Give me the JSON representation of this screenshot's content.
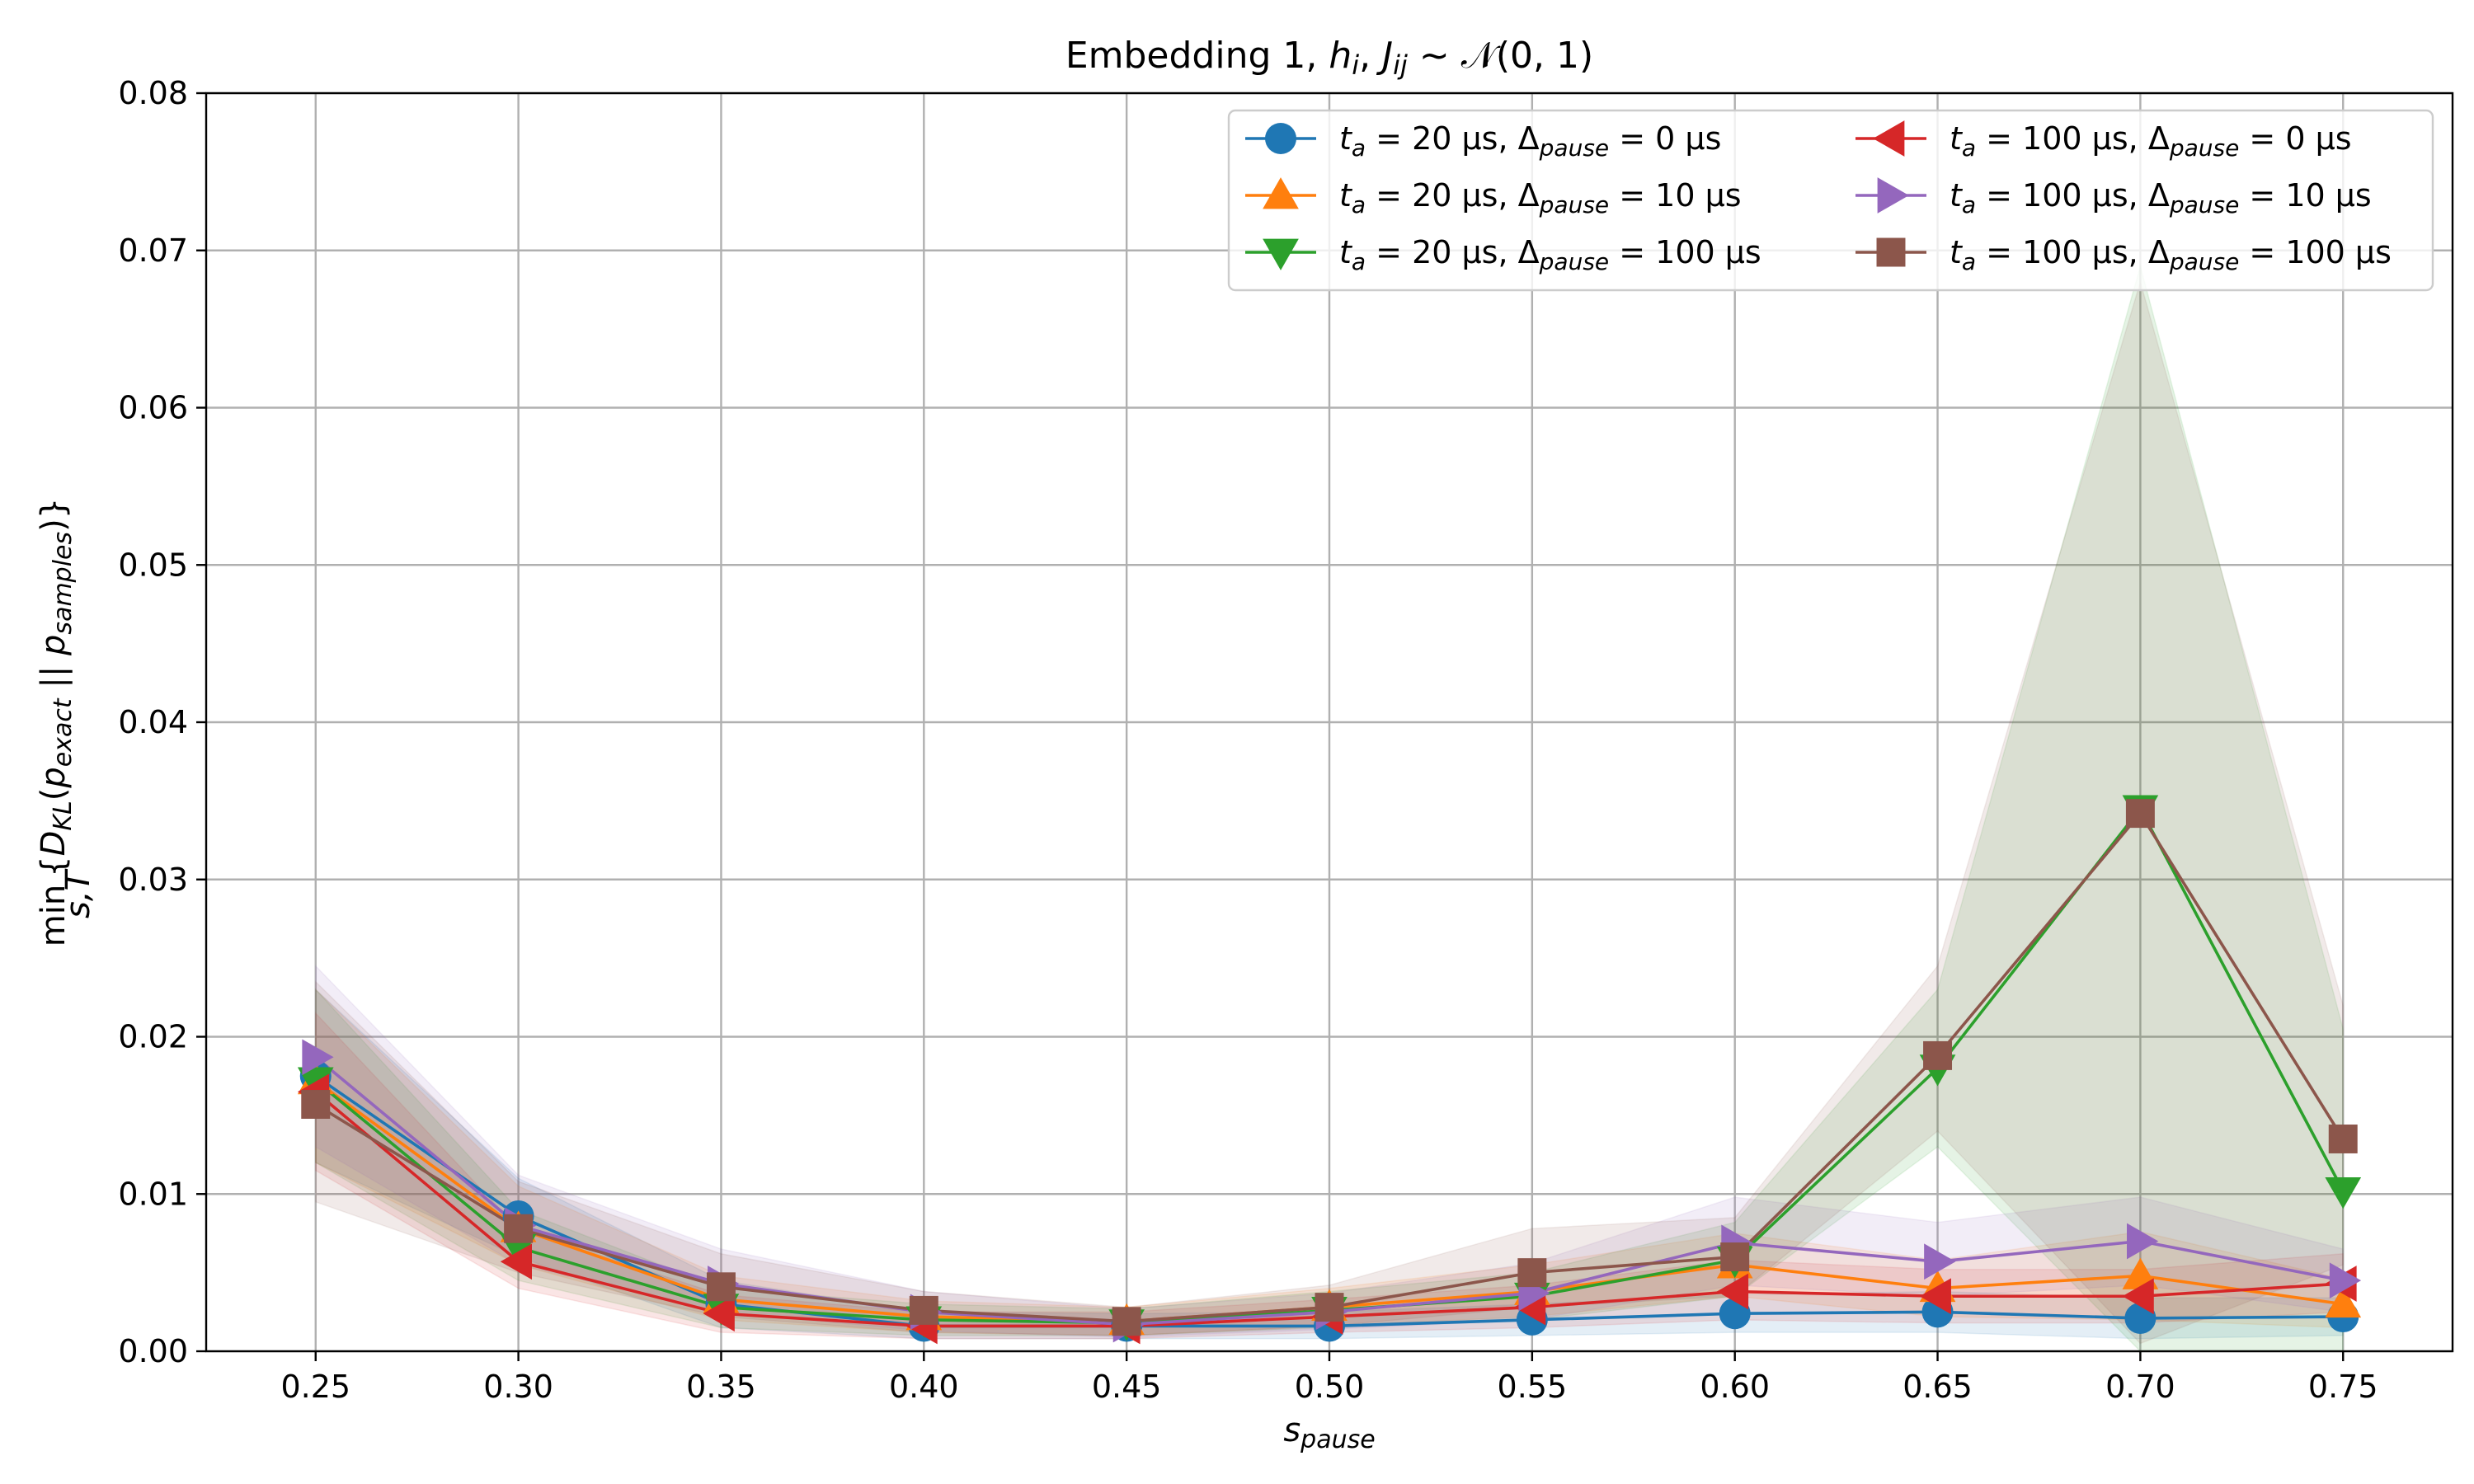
{
  "chart_data": {
    "type": "line",
    "title": "Embedding 1, h_i, J_ij ~ 𝒩(0, 1)",
    "xlabel": "s_pause",
    "ylabel": "min_{s,T}{D_KL(p_exact || p_samples)}",
    "x": [
      0.25,
      0.3,
      0.35,
      0.4,
      0.45,
      0.5,
      0.55,
      0.6,
      0.65,
      0.7,
      0.75
    ],
    "xticks": [
      "0.25",
      "0.30",
      "0.35",
      "0.40",
      "0.45",
      "0.50",
      "0.55",
      "0.60",
      "0.65",
      "0.70",
      "0.75"
    ],
    "yticks": [
      "0.00",
      "0.01",
      "0.02",
      "0.03",
      "0.04",
      "0.05",
      "0.06",
      "0.07",
      "0.08"
    ],
    "xlim": [
      0.223,
      0.777
    ],
    "ylim": [
      0.0,
      0.08
    ],
    "grid": true,
    "legend_position": "upper right",
    "series": [
      {
        "name": "t_a = 20 µs, Δ_pause = 0 µs",
        "color": "#1f77b4",
        "marker": "circle",
        "values": [
          0.0175,
          0.0086,
          0.003,
          0.0016,
          0.0016,
          0.0016,
          0.002,
          0.0024,
          0.0025,
          0.0021,
          0.0022
        ],
        "lower": [
          0.012,
          0.006,
          0.0015,
          0.0008,
          0.0008,
          0.0008,
          0.001,
          0.0012,
          0.0012,
          0.0008,
          0.001
        ],
        "upper": [
          0.023,
          0.011,
          0.0045,
          0.0025,
          0.0024,
          0.0025,
          0.003,
          0.0036,
          0.0038,
          0.0034,
          0.0034
        ]
      },
      {
        "name": "t_a = 20 µs, Δ_pause = 10 µs",
        "color": "#ff7f0e",
        "marker": "triangle-up",
        "values": [
          0.0172,
          0.0078,
          0.0033,
          0.0022,
          0.0019,
          0.0028,
          0.0038,
          0.0055,
          0.004,
          0.0048,
          0.003
        ],
        "lower": [
          0.012,
          0.0055,
          0.002,
          0.0012,
          0.001,
          0.0016,
          0.0022,
          0.0035,
          0.0022,
          0.002,
          0.0015
        ],
        "upper": [
          0.023,
          0.0105,
          0.0048,
          0.0032,
          0.0028,
          0.004,
          0.0055,
          0.0075,
          0.0058,
          0.0076,
          0.0046
        ]
      },
      {
        "name": "t_a = 20 µs, Δ_pause = 100 µs",
        "color": "#2ca02c",
        "marker": "triangle-down",
        "values": [
          0.0172,
          0.0066,
          0.0028,
          0.002,
          0.0018,
          0.0026,
          0.0035,
          0.0058,
          0.018,
          0.0345,
          0.0102
        ],
        "lower": [
          0.012,
          0.0045,
          0.0015,
          0.001,
          0.001,
          0.0015,
          0.002,
          0.0035,
          0.013,
          0.0,
          0.0
        ],
        "upper": [
          0.023,
          0.009,
          0.004,
          0.003,
          0.0027,
          0.0038,
          0.005,
          0.0082,
          0.023,
          0.069,
          0.0205
        ]
      },
      {
        "name": "t_a = 100 µs, Δ_pause = 0 µs",
        "color": "#d62728",
        "marker": "triangle-left",
        "values": [
          0.0165,
          0.0057,
          0.0024,
          0.0016,
          0.0016,
          0.0022,
          0.0028,
          0.0038,
          0.0035,
          0.0035,
          0.0043
        ],
        "lower": [
          0.0115,
          0.004,
          0.0012,
          0.0008,
          0.0008,
          0.0012,
          0.0015,
          0.002,
          0.0018,
          0.0018,
          0.0025
        ],
        "upper": [
          0.0215,
          0.0078,
          0.0036,
          0.0025,
          0.0025,
          0.0033,
          0.0042,
          0.0058,
          0.0052,
          0.0052,
          0.0062
        ]
      },
      {
        "name": "t_a = 100 µs, Δ_pause = 10 µs",
        "color": "#9467bd",
        "marker": "triangle-right",
        "values": [
          0.0187,
          0.008,
          0.0043,
          0.0025,
          0.0017,
          0.0025,
          0.0037,
          0.0069,
          0.0057,
          0.007,
          0.0045
        ],
        "lower": [
          0.013,
          0.0055,
          0.0025,
          0.0013,
          0.0009,
          0.0014,
          0.002,
          0.0042,
          0.0035,
          0.0042,
          0.0025
        ],
        "upper": [
          0.0245,
          0.0112,
          0.0065,
          0.0038,
          0.0027,
          0.0037,
          0.0056,
          0.0098,
          0.0082,
          0.0098,
          0.0065
        ]
      },
      {
        "name": "t_a = 100 µs, Δ_pause = 100 µs",
        "color": "#8c564b",
        "marker": "square",
        "values": [
          0.0157,
          0.0078,
          0.0041,
          0.0026,
          0.0019,
          0.0028,
          0.005,
          0.006,
          0.0188,
          0.0342,
          0.0135
        ],
        "lower": [
          0.0095,
          0.005,
          0.0022,
          0.0012,
          0.001,
          0.0016,
          0.0028,
          0.0035,
          0.014,
          0.0005,
          0.0055
        ],
        "upper": [
          0.0235,
          0.0108,
          0.0062,
          0.0038,
          0.0028,
          0.0042,
          0.0078,
          0.0085,
          0.0245,
          0.068,
          0.022
        ]
      }
    ]
  }
}
